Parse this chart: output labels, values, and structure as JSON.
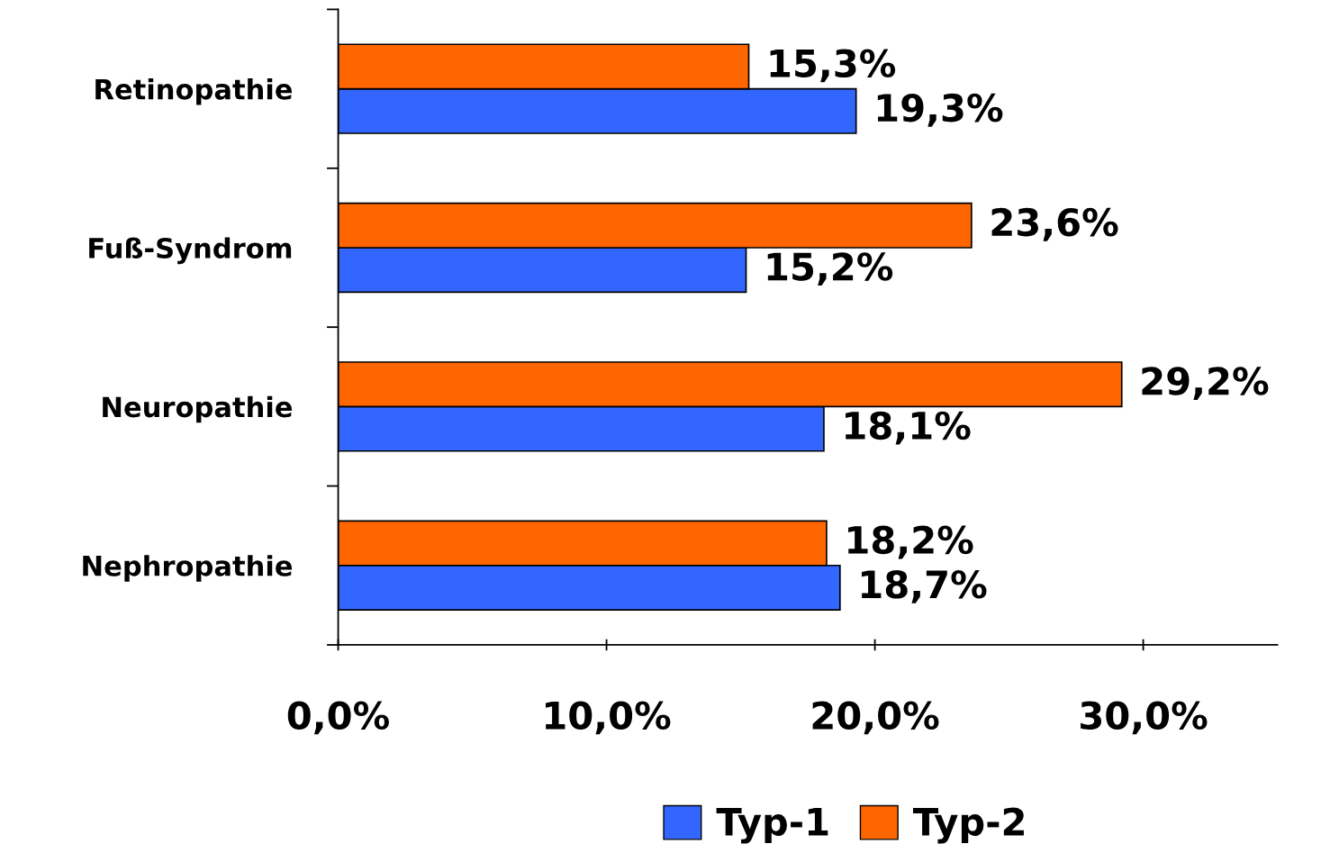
{
  "chart_data": {
    "type": "bar",
    "orientation": "horizontal",
    "categories": [
      "Retinopathie",
      "Fuß-Syndrom",
      "Neuropathie",
      "Nephropathie"
    ],
    "series": [
      {
        "name": "Typ-1",
        "color": "#3366ff",
        "values": [
          19.3,
          15.2,
          18.1,
          18.7
        ],
        "value_labels": [
          "19,3%",
          "15,2%",
          "18,1%",
          "18,7%"
        ]
      },
      {
        "name": "Typ-2",
        "color": "#ff6600",
        "values": [
          15.3,
          23.6,
          29.2,
          18.2
        ],
        "value_labels": [
          "15,3%",
          "23,6%",
          "29,2%",
          "18,2%"
        ]
      }
    ],
    "xlim": [
      0,
      35
    ],
    "xticks": [
      {
        "value": 0,
        "label": "0,0%"
      },
      {
        "value": 10,
        "label": "10,0%"
      },
      {
        "value": 20,
        "label": "20,0%"
      },
      {
        "value": 30,
        "label": "30,0%"
      }
    ],
    "grid": false,
    "legend": "bottom"
  }
}
